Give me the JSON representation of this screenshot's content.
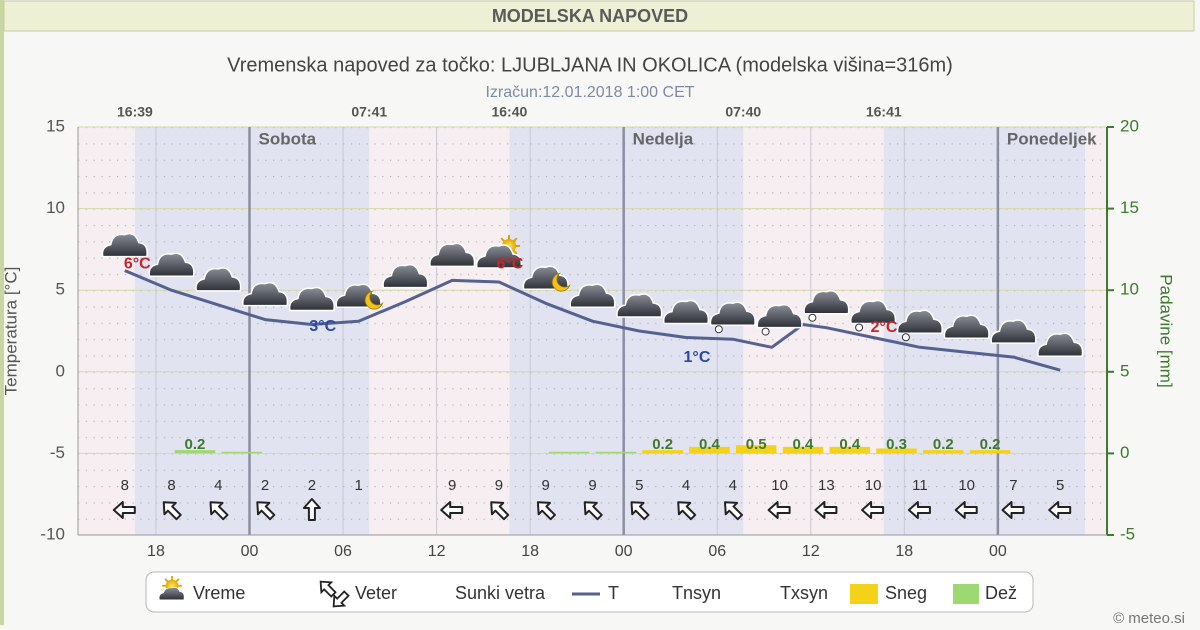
{
  "header": "MODELSKA NAPOVED",
  "footer": "© meteo.si",
  "chart_data": {
    "type": "meteogram",
    "title": "Vremenska napoved za točko: LJUBLJANA IN OKOLICA (modelska višina=316m)",
    "subtitle": "Izračun:12.01.2018 1:00 CET",
    "y_label": "Temperatura [°C]",
    "y2_label": "Padavine [mm]",
    "xlim": [
      -11,
      55
    ],
    "ylim": [
      -10,
      15
    ],
    "yticks": [
      -10,
      -5,
      0,
      5,
      10,
      15
    ],
    "y2lim": [
      -5,
      20
    ],
    "y2ticks": [
      -5,
      0,
      5,
      10,
      15,
      20
    ],
    "xticks": [
      {
        "value": -6,
        "label": "18"
      },
      {
        "value": 0,
        "label": "00"
      },
      {
        "value": 6,
        "label": "06"
      },
      {
        "value": 12,
        "label": "12"
      },
      {
        "value": 18,
        "label": "18"
      },
      {
        "value": 24,
        "label": "00"
      },
      {
        "value": 30,
        "label": "06"
      },
      {
        "value": 36,
        "label": "12"
      },
      {
        "value": 42,
        "label": "18"
      },
      {
        "value": 48,
        "label": "00"
      }
    ],
    "days": [
      {
        "label": "Sobota",
        "x": 0
      },
      {
        "label": "Nedelja",
        "x": 24
      },
      {
        "label": "Ponedeljek",
        "x": 48
      }
    ],
    "sun_events": [
      {
        "label": "16:39",
        "x": -7.35
      },
      {
        "label": "07:41",
        "x": 7.68
      },
      {
        "label": "16:40",
        "x": 16.67
      },
      {
        "label": "07:40",
        "x": 31.67
      },
      {
        "label": "16:41",
        "x": 40.68
      }
    ],
    "temperature": {
      "color": "#55628f",
      "x": [
        -8,
        -5,
        -2,
        1,
        4,
        7,
        10,
        13,
        16,
        19,
        22,
        25,
        28,
        31,
        33.5,
        35.5,
        37,
        40,
        43,
        46,
        49,
        52
      ],
      "values": [
        6.2,
        5.0,
        4.1,
        3.2,
        2.9,
        3.1,
        4.3,
        5.6,
        5.5,
        4.2,
        3.1,
        2.5,
        2.1,
        2.0,
        1.5,
        2.9,
        2.7,
        2.1,
        1.5,
        1.2,
        0.9,
        0.1
      ]
    },
    "annotations": [
      {
        "text": "6°C",
        "x": -7.2,
        "y": 6.6,
        "color": "#c0282a"
      },
      {
        "text": "3°C",
        "x": 4.7,
        "y": 2.75,
        "color": "#2a4aa0"
      },
      {
        "text": "6°C",
        "x": 16.7,
        "y": 6.6,
        "color": "#c0282a"
      },
      {
        "text": "1°C",
        "x": 28.7,
        "y": 0.86,
        "color": "#2a4aa0"
      },
      {
        "text": "2°C",
        "x": 40.7,
        "y": 2.7,
        "color": "#c0282a"
      }
    ],
    "weather": {
      "x": [
        -8,
        -5,
        -2,
        1,
        4,
        7,
        10,
        13,
        16,
        19,
        22,
        25,
        28,
        31,
        34,
        37,
        40,
        43,
        46,
        49,
        52
      ],
      "icons": [
        "cloud",
        "cloud",
        "cloud",
        "cloud",
        "cloud",
        "cloud-moon",
        "cloud",
        "cloud",
        "cloud-sun",
        "cloud-moon",
        "cloud",
        "cloud",
        "cloud",
        "cloud-snow",
        "cloud-snow",
        "cloud-snow",
        "cloud-snow",
        "cloud-snow",
        "cloud",
        "cloud",
        "cloud"
      ]
    },
    "wind": {
      "x": [
        -8,
        -5,
        -2,
        1,
        4,
        7,
        13,
        16,
        19,
        22,
        25,
        28,
        31,
        34,
        37,
        40,
        43,
        46,
        49,
        52
      ],
      "values": [
        8,
        8,
        4,
        2,
        2,
        1,
        9,
        9,
        9,
        9,
        5,
        4,
        4,
        10,
        13,
        10,
        11,
        10,
        7,
        5
      ],
      "directions": [
        90,
        135,
        135,
        135,
        180,
        null,
        90,
        135,
        135,
        135,
        135,
        135,
        135,
        90,
        90,
        90,
        90,
        90,
        90,
        90
      ]
    },
    "precipitation": [
      {
        "color": "#9ed870",
        "axis": "y2",
        "x": [
          -3.5,
          -0.5,
          20.5,
          23.5
        ],
        "values": [
          0.2,
          0.1,
          0.1,
          0.1
        ],
        "value_labels": [
          "0.2",
          null,
          null,
          null
        ]
      },
      {
        "color": "#f5d21a",
        "axis": "y2",
        "x": [
          26.5,
          29.5,
          32.5,
          35.5,
          38.5,
          41.5,
          44.5,
          47.5
        ],
        "values": [
          0.2,
          0.4,
          0.5,
          0.4,
          0.4,
          0.3,
          0.2,
          0.2
        ],
        "value_labels": [
          "0.2",
          "0.4",
          "0.5",
          "0.4",
          "0.4",
          "0.3",
          "0.2",
          "0.2"
        ]
      }
    ],
    "legend": [
      "Vreme",
      "Veter",
      "Sunki vetra",
      "T",
      "Tnsyn",
      "Txsyn",
      "Sneg",
      "Dež"
    ]
  }
}
